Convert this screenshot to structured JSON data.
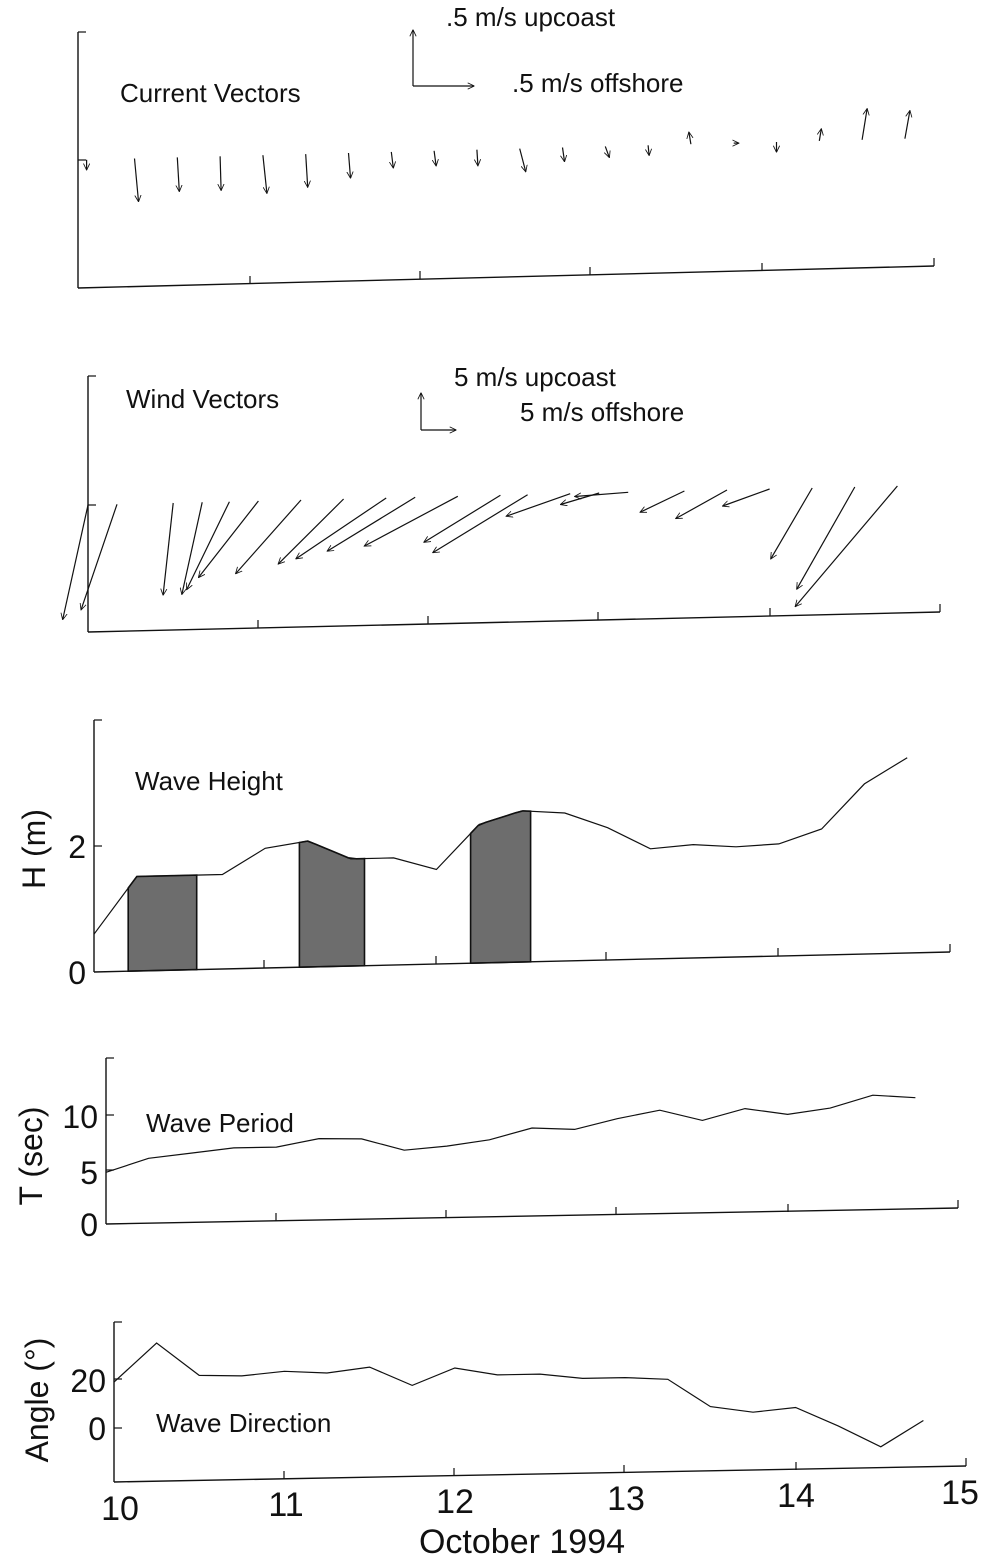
{
  "x_axis": {
    "label": "October 1994",
    "range": [
      10,
      15
    ],
    "ticks": [
      10,
      11,
      12,
      13,
      14,
      15
    ],
    "tick_labels": [
      "10",
      "11",
      "12",
      "13",
      "14",
      "15"
    ]
  },
  "chart_data": [
    {
      "type": "vector",
      "title": "Current Vectors",
      "scale_labels": {
        "upcoast": ".5 m/s upcoast",
        "offshore": ".5 m/s offshore"
      },
      "units": "m/s",
      "scale_speed": 0.5,
      "x": [
        10.05,
        10.33,
        10.58,
        10.83,
        11.08,
        11.33,
        11.58,
        11.83,
        12.08,
        12.33,
        12.58,
        12.83,
        13.08,
        13.33,
        13.58,
        13.83,
        14.08,
        14.33,
        14.58,
        14.83
      ],
      "vectors": [
        {
          "u": 0.0,
          "v": -0.1
        },
        {
          "u": 0.04,
          "v": -0.43
        },
        {
          "u": 0.02,
          "v": -0.34
        },
        {
          "u": 0.01,
          "v": -0.34
        },
        {
          "u": 0.04,
          "v": -0.38
        },
        {
          "u": 0.02,
          "v": -0.33
        },
        {
          "u": 0.02,
          "v": -0.25
        },
        {
          "u": 0.02,
          "v": -0.16
        },
        {
          "u": 0.02,
          "v": -0.15
        },
        {
          "u": 0.01,
          "v": -0.16
        },
        {
          "u": 0.06,
          "v": -0.23
        },
        {
          "u": 0.02,
          "v": -0.14
        },
        {
          "u": 0.04,
          "v": -0.11
        },
        {
          "u": 0.01,
          "v": -0.1
        },
        {
          "u": -0.02,
          "v": 0.12
        },
        {
          "u": 0.05,
          "v": 0.0
        },
        {
          "u": 0.0,
          "v": -0.1
        },
        {
          "u": 0.02,
          "v": 0.12
        },
        {
          "u": 0.05,
          "v": 0.31
        },
        {
          "u": 0.05,
          "v": 0.28
        }
      ]
    },
    {
      "type": "vector",
      "title": "Wind Vectors",
      "scale_labels": {
        "upcoast": "5 m/s upcoast",
        "offshore": "5 m/s offshore"
      },
      "units": "m/s",
      "scale_speed": 5,
      "x": [
        10.0,
        10.17,
        10.5,
        10.67,
        10.83,
        11.0,
        11.25,
        11.5,
        11.75,
        11.92,
        12.17,
        12.42,
        12.58,
        12.83,
        13.0,
        13.17,
        13.5,
        13.75,
        14.0,
        14.25,
        14.5,
        14.75
      ],
      "vectors": [
        {
          "u": -5.5,
          "v": -24.9
        },
        {
          "u": -7.8,
          "v": -22.9
        },
        {
          "u": -2.2,
          "v": -20.0
        },
        {
          "u": -4.4,
          "v": -20.0
        },
        {
          "u": -9.3,
          "v": -19.1
        },
        {
          "u": -13.0,
          "v": -16.6
        },
        {
          "u": -14.2,
          "v": -16.0
        },
        {
          "u": -14.2,
          "v": -14.1
        },
        {
          "u": -19.6,
          "v": -13.2
        },
        {
          "u": -19.1,
          "v": -11.7
        },
        {
          "u": -20.3,
          "v": -10.8
        },
        {
          "u": -16.6,
          "v": -10.2
        },
        {
          "u": -20.6,
          "v": -12.6
        },
        {
          "u": -13.9,
          "v": -4.9
        },
        {
          "u": -8.4,
          "v": -2.5
        },
        {
          "u": -11.6,
          "v": -0.9
        },
        {
          "u": -9.6,
          "v": -4.6
        },
        {
          "u": -11.1,
          "v": -6.2
        },
        {
          "u": -10.2,
          "v": -3.7
        },
        {
          "u": -9.0,
          "v": -15.4
        },
        {
          "u": -12.6,
          "v": -22.2
        },
        {
          "u": -22.2,
          "v": -26.2
        }
      ]
    },
    {
      "type": "line",
      "title": "Wave Height",
      "ylabel": "H (m)",
      "ylim": [
        0,
        3.4
      ],
      "yticks": [
        0,
        2
      ],
      "ytick_labels": [
        "0",
        "2"
      ],
      "x": [
        10.0,
        10.25,
        10.5,
        10.75,
        11.0,
        11.25,
        11.5,
        11.75,
        12.0,
        12.25,
        12.5,
        12.75,
        13.0,
        13.25,
        13.5,
        13.75,
        14.0,
        14.25,
        14.5,
        14.75
      ],
      "y": [
        0.6,
        1.5,
        1.5,
        1.5,
        1.9,
        2.0,
        1.7,
        1.7,
        1.5,
        2.2,
        2.4,
        2.35,
        2.1,
        1.75,
        1.8,
        1.75,
        1.78,
        2.0,
        2.7,
        3.1
      ],
      "shaded_intervals": [
        [
          10.2,
          10.6
        ],
        [
          11.2,
          11.58
        ],
        [
          12.2,
          12.55
        ]
      ]
    },
    {
      "type": "line",
      "title": "Wave Period",
      "ylabel": "T (sec)",
      "ylim": [
        0,
        13
      ],
      "yticks": [
        0,
        5,
        10
      ],
      "ytick_labels": [
        "0",
        "5",
        "10"
      ],
      "x": [
        10.0,
        10.25,
        10.5,
        10.75,
        11.0,
        11.25,
        11.5,
        11.75,
        12.0,
        12.25,
        12.5,
        12.75,
        13.0,
        13.25,
        13.5,
        13.75,
        14.0,
        14.25,
        14.5,
        14.75
      ],
      "y": [
        4.7,
        5.9,
        6.3,
        6.7,
        6.7,
        7.4,
        7.3,
        6.2,
        6.5,
        7.0,
        8.0,
        7.8,
        8.7,
        9.4,
        8.4,
        9.4,
        8.8,
        9.3,
        10.4,
        10.1
      ]
    },
    {
      "type": "line",
      "title": "Wave Direction",
      "ylabel": "Angle (°)",
      "ylim": [
        -15,
        38
      ],
      "yticks": [
        0,
        20
      ],
      "ytick_labels": [
        "0",
        "20"
      ],
      "x": [
        10.0,
        10.25,
        10.5,
        10.75,
        11.0,
        11.25,
        11.5,
        11.75,
        12.0,
        12.25,
        12.5,
        12.75,
        13.0,
        13.25,
        13.5,
        13.75,
        14.0,
        14.25,
        14.5,
        14.75
      ],
      "y": [
        18,
        33,
        20,
        19.5,
        21,
        20,
        22,
        14.5,
        21,
        18,
        18,
        16,
        16,
        15,
        4,
        1.5,
        3,
        -4.5,
        -13,
        -3
      ]
    }
  ]
}
